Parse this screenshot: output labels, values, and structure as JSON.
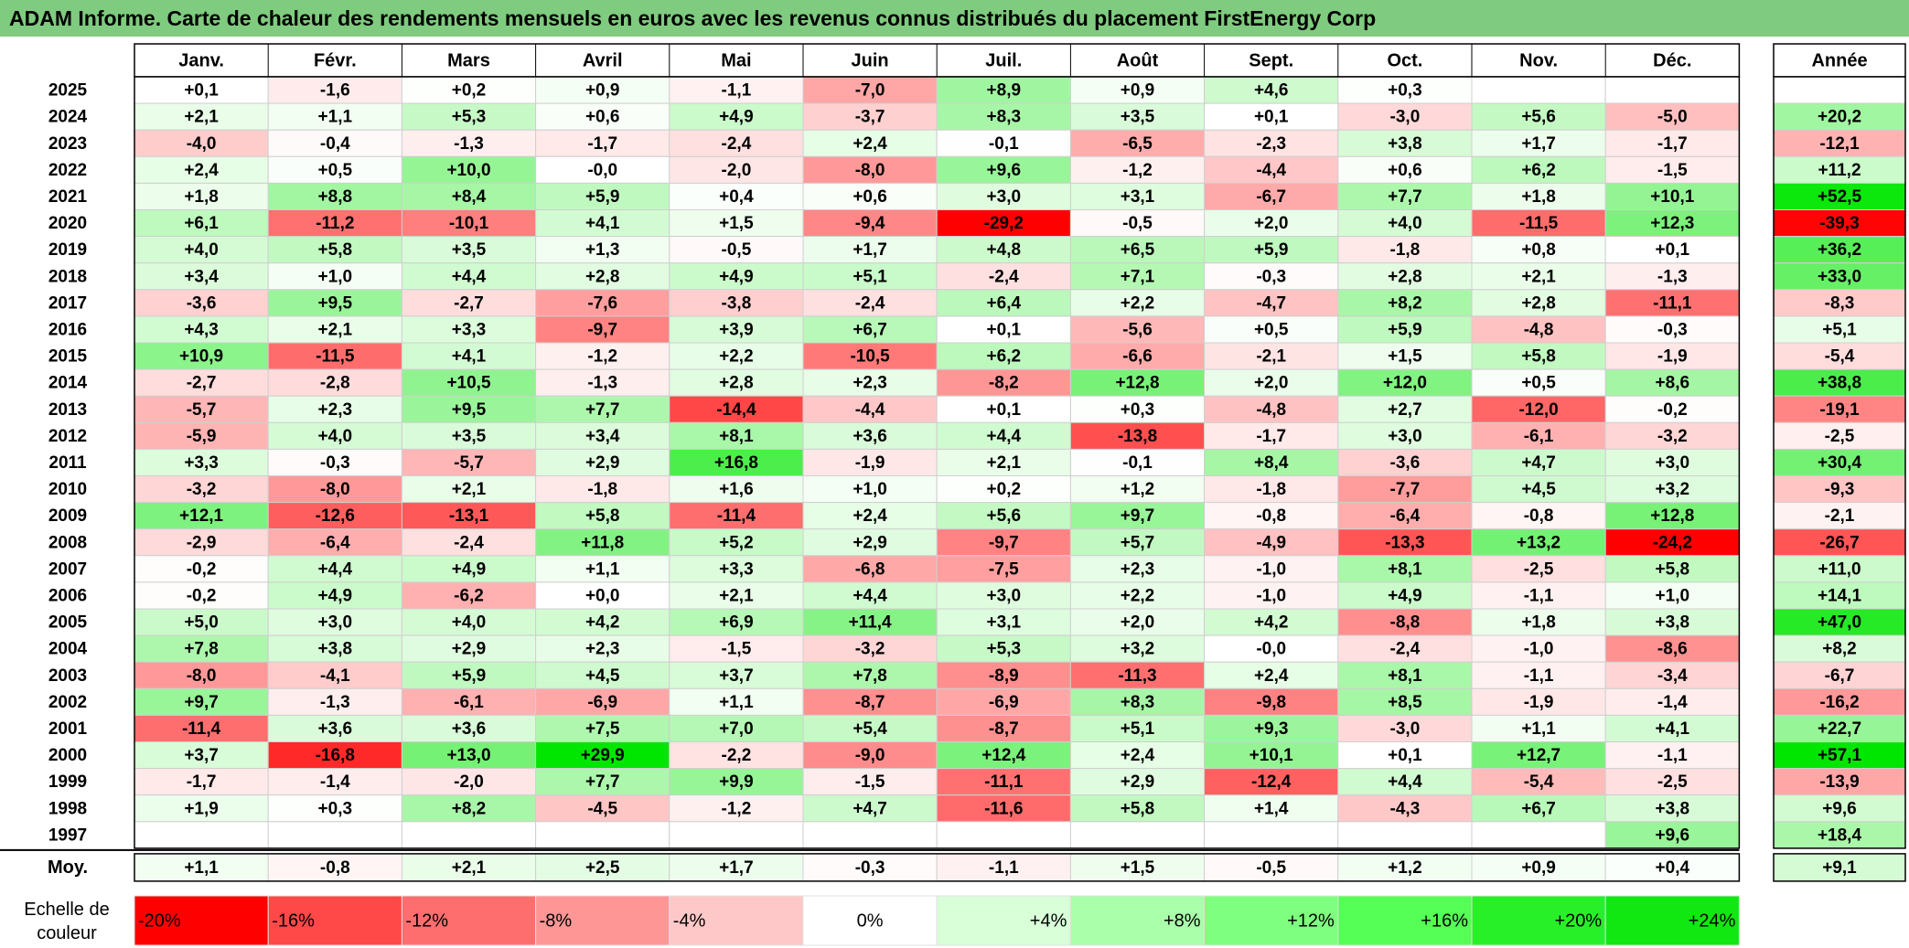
{
  "title": "ADAM Informe. Carte de chaleur des rendements mensuels en euros avec les revenus connus distribués du placement FirstEnergy Corp",
  "chart_data": {
    "type": "heatmap",
    "months": [
      "Janv.",
      "Févr.",
      "Mars",
      "Avril",
      "Mai",
      "Juin",
      "Juil.",
      "Août",
      "Sept.",
      "Oct.",
      "Nov.",
      "Déc."
    ],
    "year_header": "Année",
    "rows": [
      {
        "year": "2025",
        "values": [
          "+0,1",
          "-1,6",
          "+0,2",
          "+0,9",
          "-1,1",
          "-7,0",
          "+8,9",
          "+0,9",
          "+4,6",
          "+0,3",
          "",
          ""
        ],
        "annual": ""
      },
      {
        "year": "2024",
        "values": [
          "+2,1",
          "+1,1",
          "+5,3",
          "+0,6",
          "+4,9",
          "-3,7",
          "+8,3",
          "+3,5",
          "+0,1",
          "-3,0",
          "+5,6",
          "-5,0"
        ],
        "annual": "+20,2"
      },
      {
        "year": "2023",
        "values": [
          "-4,0",
          "-0,4",
          "-1,3",
          "-1,7",
          "-2,4",
          "+2,4",
          "-0,1",
          "-6,5",
          "-2,3",
          "+3,8",
          "+1,7",
          "-1,7"
        ],
        "annual": "-12,1"
      },
      {
        "year": "2022",
        "values": [
          "+2,4",
          "+0,5",
          "+10,0",
          "-0,0",
          "-2,0",
          "-8,0",
          "+9,6",
          "-1,2",
          "-4,4",
          "+0,6",
          "+6,2",
          "-1,5"
        ],
        "annual": "+11,2"
      },
      {
        "year": "2021",
        "values": [
          "+1,8",
          "+8,8",
          "+8,4",
          "+5,9",
          "+0,4",
          "+0,6",
          "+3,0",
          "+3,1",
          "-6,7",
          "+7,7",
          "+1,8",
          "+10,1"
        ],
        "annual": "+52,5"
      },
      {
        "year": "2020",
        "values": [
          "+6,1",
          "-11,2",
          "-10,1",
          "+4,1",
          "+1,5",
          "-9,4",
          "-29,2",
          "-0,5",
          "+2,0",
          "+4,0",
          "-11,5",
          "+12,3"
        ],
        "annual": "-39,3"
      },
      {
        "year": "2019",
        "values": [
          "+4,0",
          "+5,8",
          "+3,5",
          "+1,3",
          "-0,5",
          "+1,7",
          "+4,8",
          "+6,5",
          "+5,9",
          "-1,8",
          "+0,8",
          "+0,1"
        ],
        "annual": "+36,2"
      },
      {
        "year": "2018",
        "values": [
          "+3,4",
          "+1,0",
          "+4,4",
          "+2,8",
          "+4,9",
          "+5,1",
          "-2,4",
          "+7,1",
          "-0,3",
          "+2,8",
          "+2,1",
          "-1,3"
        ],
        "annual": "+33,0"
      },
      {
        "year": "2017",
        "values": [
          "-3,6",
          "+9,5",
          "-2,7",
          "-7,6",
          "-3,8",
          "-2,4",
          "+6,4",
          "+2,2",
          "-4,7",
          "+8,2",
          "+2,8",
          "-11,1"
        ],
        "annual": "-8,3"
      },
      {
        "year": "2016",
        "values": [
          "+4,3",
          "+2,1",
          "+3,3",
          "-9,7",
          "+3,9",
          "+6,7",
          "+0,1",
          "-5,6",
          "+0,5",
          "+5,9",
          "-4,8",
          "-0,3"
        ],
        "annual": "+5,1"
      },
      {
        "year": "2015",
        "values": [
          "+10,9",
          "-11,5",
          "+4,1",
          "-1,2",
          "+2,2",
          "-10,5",
          "+6,2",
          "-6,6",
          "-2,1",
          "+1,5",
          "+5,8",
          "-1,9"
        ],
        "annual": "-5,4"
      },
      {
        "year": "2014",
        "values": [
          "-2,7",
          "-2,8",
          "+10,5",
          "-1,3",
          "+2,8",
          "+2,3",
          "-8,2",
          "+12,8",
          "+2,0",
          "+12,0",
          "+0,5",
          "+8,6"
        ],
        "annual": "+38,8"
      },
      {
        "year": "2013",
        "values": [
          "-5,7",
          "+2,3",
          "+9,5",
          "+7,7",
          "-14,4",
          "-4,4",
          "+0,1",
          "+0,3",
          "-4,8",
          "+2,7",
          "-12,0",
          "-0,2"
        ],
        "annual": "-19,1"
      },
      {
        "year": "2012",
        "values": [
          "-5,9",
          "+4,0",
          "+3,5",
          "+3,4",
          "+8,1",
          "+3,6",
          "+4,4",
          "-13,8",
          "-1,7",
          "+3,0",
          "-6,1",
          "-3,2"
        ],
        "annual": "-2,5"
      },
      {
        "year": "2011",
        "values": [
          "+3,3",
          "-0,3",
          "-5,7",
          "+2,9",
          "+16,8",
          "-1,9",
          "+2,1",
          "-0,1",
          "+8,4",
          "-3,6",
          "+4,7",
          "+3,0"
        ],
        "annual": "+30,4"
      },
      {
        "year": "2010",
        "values": [
          "-3,2",
          "-8,0",
          "+2,1",
          "-1,8",
          "+1,6",
          "+1,0",
          "+0,2",
          "+1,2",
          "-1,8",
          "-7,7",
          "+4,5",
          "+3,2"
        ],
        "annual": "-9,3"
      },
      {
        "year": "2009",
        "values": [
          "+12,1",
          "-12,6",
          "-13,1",
          "+5,8",
          "-11,4",
          "+2,4",
          "+5,6",
          "+9,7",
          "-0,8",
          "-6,4",
          "-0,8",
          "+12,8"
        ],
        "annual": "-2,1"
      },
      {
        "year": "2008",
        "values": [
          "-2,9",
          "-6,4",
          "-2,4",
          "+11,8",
          "+5,2",
          "+2,9",
          "-9,7",
          "+5,7",
          "-4,9",
          "-13,3",
          "+13,2",
          "-24,2"
        ],
        "annual": "-26,7"
      },
      {
        "year": "2007",
        "values": [
          "-0,2",
          "+4,4",
          "+4,9",
          "+1,1",
          "+3,3",
          "-6,8",
          "-7,5",
          "+2,3",
          "-1,0",
          "+8,1",
          "-2,5",
          "+5,8"
        ],
        "annual": "+11,0"
      },
      {
        "year": "2006",
        "values": [
          "-0,2",
          "+4,9",
          "-6,2",
          "+0,0",
          "+2,1",
          "+4,4",
          "+3,0",
          "+2,2",
          "-1,0",
          "+4,9",
          "-1,1",
          "+1,0"
        ],
        "annual": "+14,1"
      },
      {
        "year": "2005",
        "values": [
          "+5,0",
          "+3,0",
          "+4,0",
          "+4,2",
          "+6,9",
          "+11,4",
          "+3,1",
          "+2,0",
          "+4,2",
          "-8,8",
          "+1,8",
          "+3,8"
        ],
        "annual": "+47,0"
      },
      {
        "year": "2004",
        "values": [
          "+7,8",
          "+3,8",
          "+2,9",
          "+2,3",
          "-1,5",
          "-3,2",
          "+5,3",
          "+3,2",
          "-0,0",
          "-2,4",
          "-1,0",
          "-8,6"
        ],
        "annual": "+8,2"
      },
      {
        "year": "2003",
        "values": [
          "-8,0",
          "-4,1",
          "+5,9",
          "+4,5",
          "+3,7",
          "+7,8",
          "-8,9",
          "-11,3",
          "+2,4",
          "+8,1",
          "-1,1",
          "-3,4"
        ],
        "annual": "-6,7"
      },
      {
        "year": "2002",
        "values": [
          "+9,7",
          "-1,3",
          "-6,1",
          "-6,9",
          "+1,1",
          "-8,7",
          "-6,9",
          "+8,3",
          "-9,8",
          "+8,5",
          "-1,9",
          "-1,4"
        ],
        "annual": "-16,2"
      },
      {
        "year": "2001",
        "values": [
          "-11,4",
          "+3,6",
          "+3,6",
          "+7,5",
          "+7,0",
          "+5,4",
          "-8,7",
          "+5,1",
          "+9,3",
          "-3,0",
          "+1,1",
          "+4,1"
        ],
        "annual": "+22,7"
      },
      {
        "year": "2000",
        "values": [
          "+3,7",
          "-16,8",
          "+13,0",
          "+29,9",
          "-2,2",
          "-9,0",
          "+12,4",
          "+2,4",
          "+10,1",
          "+0,1",
          "+12,7",
          "-1,1"
        ],
        "annual": "+57,1"
      },
      {
        "year": "1999",
        "values": [
          "-1,7",
          "-1,4",
          "-2,0",
          "+7,7",
          "+9,9",
          "-1,5",
          "-11,1",
          "+2,9",
          "-12,4",
          "+4,4",
          "-5,4",
          "-2,5"
        ],
        "annual": "-13,9"
      },
      {
        "year": "1998",
        "values": [
          "+1,9",
          "+0,3",
          "+8,2",
          "-4,5",
          "-1,2",
          "+4,7",
          "-11,6",
          "+5,8",
          "+1,4",
          "-4,3",
          "+6,7",
          "+3,8"
        ],
        "annual": "+9,6"
      },
      {
        "year": "1997",
        "values": [
          "",
          "",
          "",
          "",
          "",
          "",
          "",
          "",
          "",
          "",
          "",
          "+9,6"
        ],
        "annual": "+18,4"
      }
    ],
    "average": {
      "label": "Moy.",
      "values": [
        "+1,1",
        "-0,8",
        "+2,1",
        "+2,5",
        "+1,7",
        "-0,3",
        "-1,1",
        "+1,5",
        "-0,5",
        "+1,2",
        "+0,9",
        "+0,4"
      ],
      "annual": "+9,1"
    },
    "color_scale": {
      "label": "Echelle de couleur",
      "steps": [
        "-20%",
        "-16%",
        "-12%",
        "-8%",
        "-4%",
        "0%",
        "+4%",
        "+8%",
        "+12%",
        "+16%",
        "+20%",
        "+24%"
      ],
      "colors": [
        "#ff0000",
        "#ff4848",
        "#ff6e6e",
        "#ff9696",
        "#ffc8c8",
        "#ffffff",
        "#d8ffd8",
        "#aaffaa",
        "#7fff7f",
        "#55ff55",
        "#28f028",
        "#11e811"
      ]
    },
    "colors": {
      "title_background": "#7fcb7f",
      "negative": "#ff0000",
      "neutral": "#ffffff",
      "positive": "#00e000"
    }
  }
}
